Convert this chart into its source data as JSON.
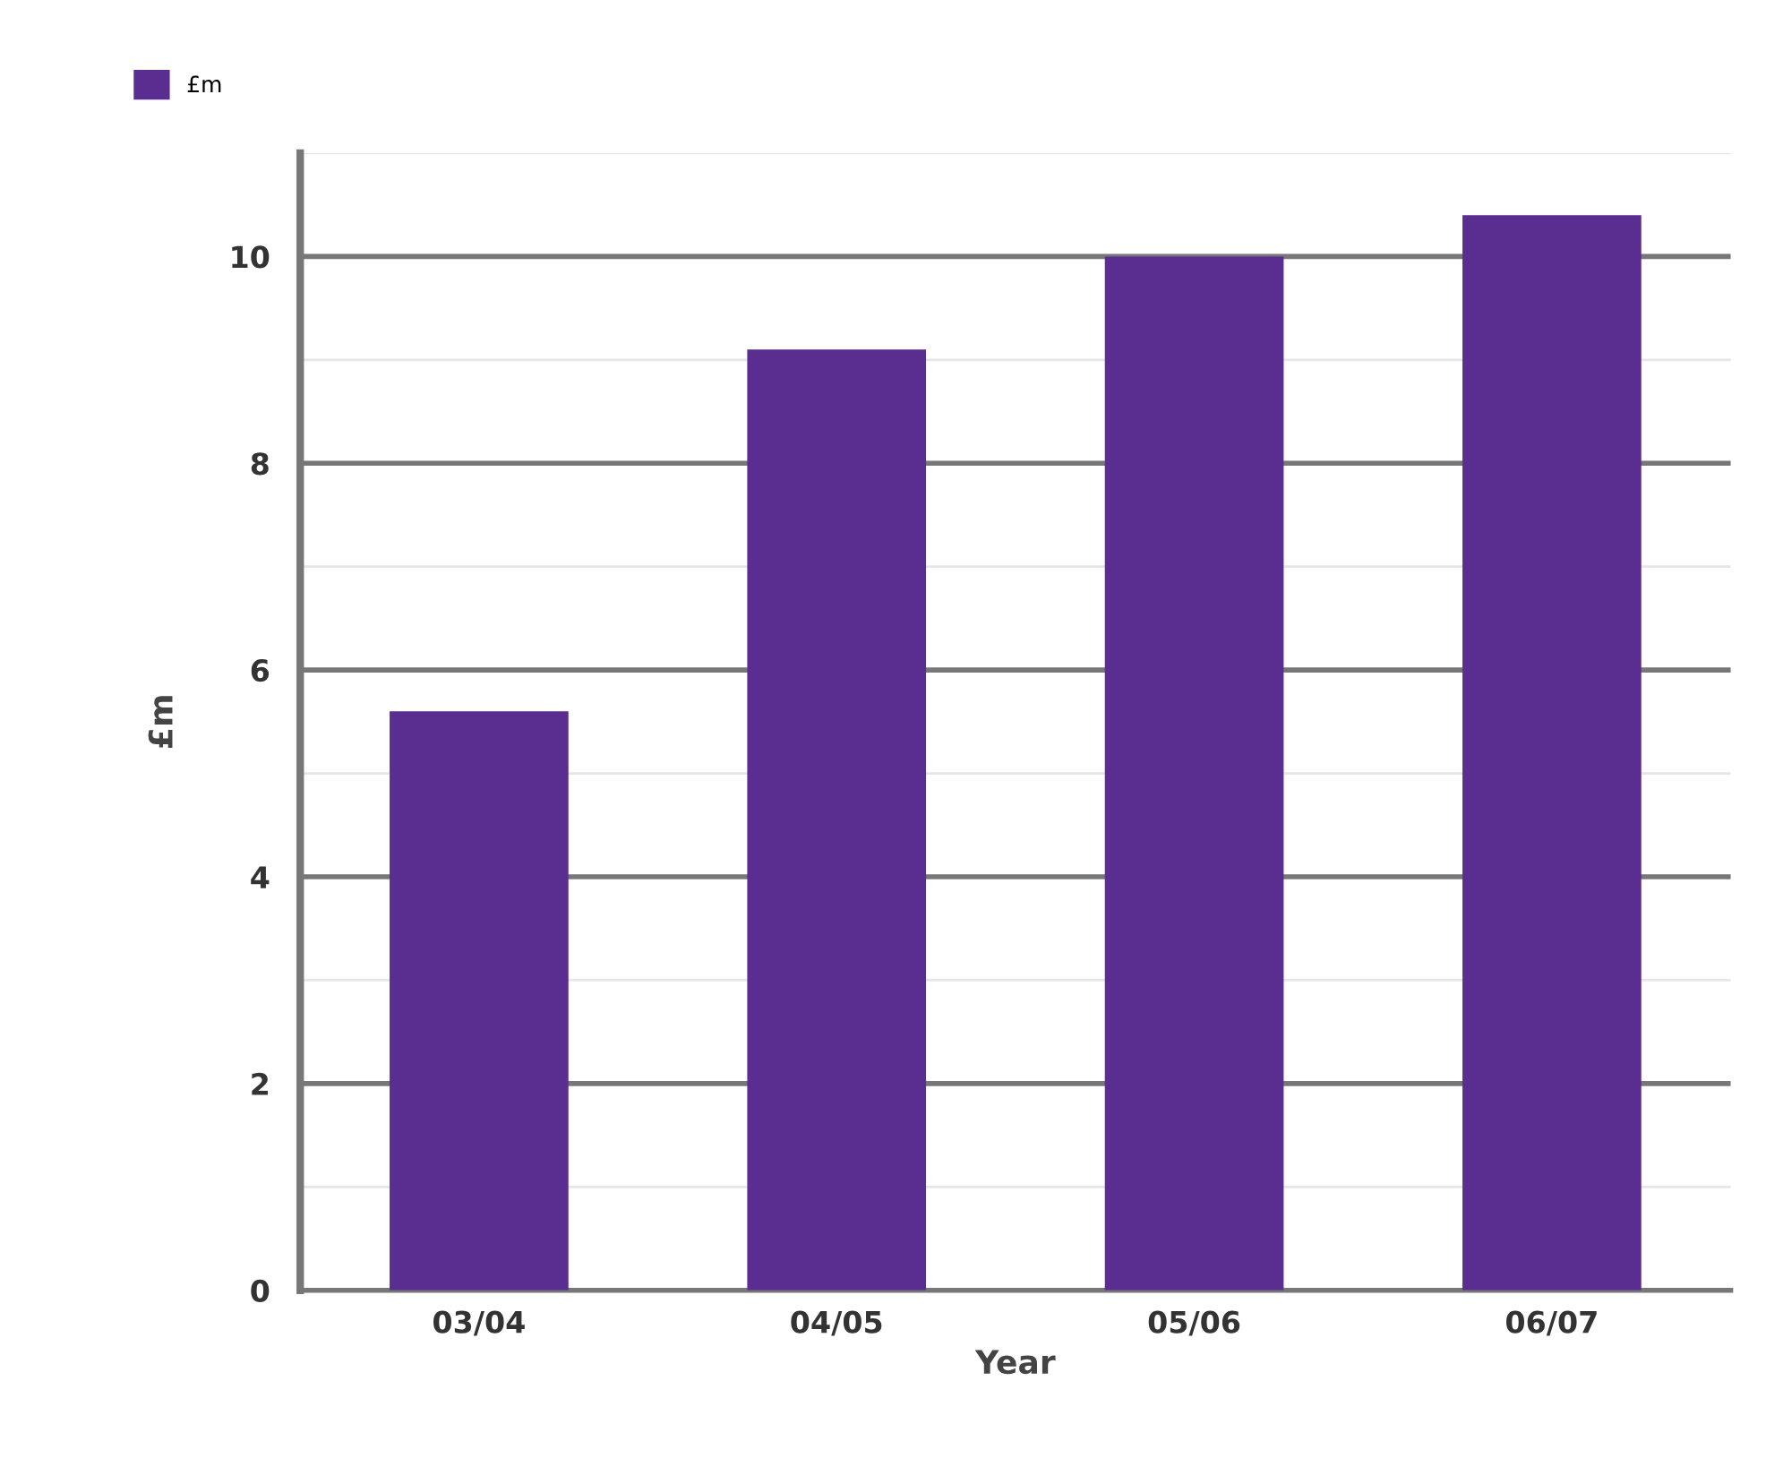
{
  "chart_data": {
    "type": "bar",
    "xlabel": "Year",
    "ylabel": "£m",
    "categories": [
      "03/04",
      "04/05",
      "05/06",
      "06/07"
    ],
    "series": [
      {
        "name": "£m",
        "color": "#5a2d91",
        "values": [
          5.6,
          9.1,
          10.0,
          10.4
        ]
      }
    ],
    "ylim": [
      0,
      11
    ],
    "yticks": [
      0,
      {
        "value": 1,
        "label": null
      },
      2,
      {
        "value": 3,
        "label": null
      },
      4,
      {
        "value": 5,
        "label": null
      },
      6,
      {
        "value": 7,
        "label": null
      },
      8,
      {
        "value": 9,
        "label": null
      },
      10,
      {
        "value": 11,
        "label": null
      }
    ],
    "grid": "y",
    "legend": "top left"
  }
}
